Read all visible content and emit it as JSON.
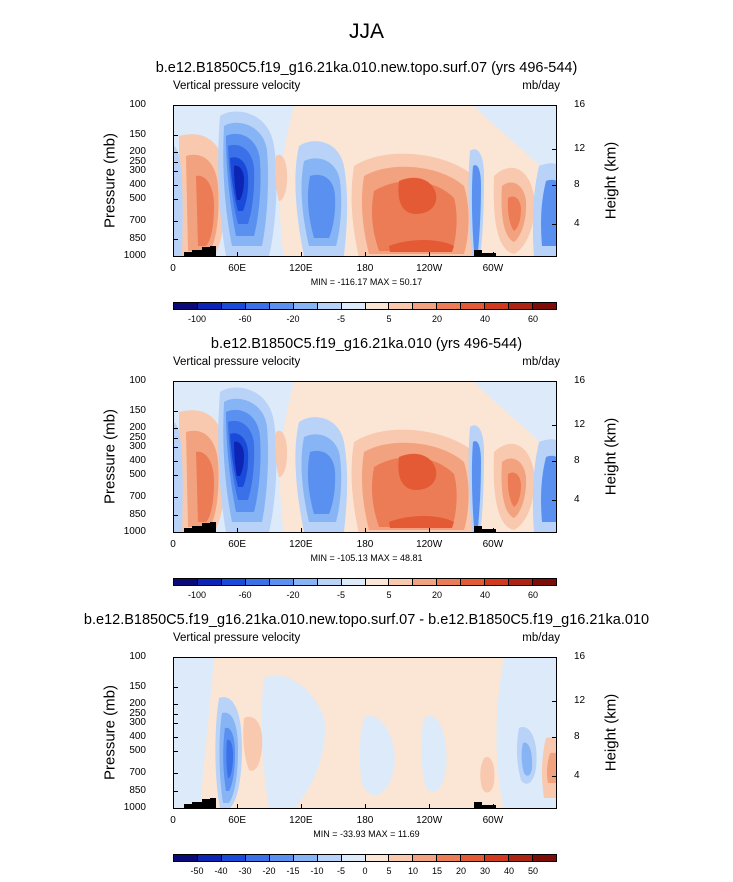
{
  "title": "JJA",
  "colors": {
    "diverging": [
      "#0a0a78",
      "#0d25b4",
      "#1a4bd8",
      "#3a70e8",
      "#5a90f0",
      "#86b4f4",
      "#b8d3f7",
      "#dceaf9",
      "#fbe6d6",
      "#f8c9ae",
      "#f3a27f",
      "#ec7c55",
      "#e35a35",
      "#d13a1c",
      "#ad2412",
      "#7e0c08"
    ]
  },
  "chart_data": [
    {
      "type": "heatmap",
      "title": "b.e12.B1850C5.f19_g16.21ka.010.new.topo.surf.07 (yrs 496-544)",
      "subtitle_left": "Vertical pressure velocity",
      "subtitle_right": "mb/day",
      "ylabel": "Pressure (mb)",
      "ylabel_right": "Height (km)",
      "x_ticks": [
        "0",
        "60E",
        "120E",
        "180",
        "120W",
        "60W"
      ],
      "y_ticks": [
        "100",
        "150",
        "200",
        "250",
        "300",
        "400",
        "500",
        "700",
        "850",
        "1000"
      ],
      "y_ticks_right": [
        "16",
        "12",
        "8",
        "4"
      ],
      "minmax": "MIN = -116.17  MAX =  50.17",
      "colorbar_labels": [
        "-100",
        "-60",
        "-20",
        "-5",
        "5",
        "20",
        "40",
        "60"
      ],
      "variant": "full"
    },
    {
      "type": "heatmap",
      "title": "b.e12.B1850C5.f19_g16.21ka.010 (yrs 496-544)",
      "subtitle_left": "Vertical pressure velocity",
      "subtitle_right": "mb/day",
      "ylabel": "Pressure (mb)",
      "ylabel_right": "Height (km)",
      "x_ticks": [
        "0",
        "60E",
        "120E",
        "180",
        "120W",
        "60W"
      ],
      "y_ticks": [
        "100",
        "150",
        "200",
        "250",
        "300",
        "400",
        "500",
        "700",
        "850",
        "1000"
      ],
      "y_ticks_right": [
        "16",
        "12",
        "8",
        "4"
      ],
      "minmax": "MIN = -105.13  MAX =  48.81",
      "colorbar_labels": [
        "-100",
        "-60",
        "-20",
        "-5",
        "5",
        "20",
        "40",
        "60"
      ],
      "variant": "full"
    },
    {
      "type": "heatmap",
      "title": "b.e12.B1850C5.f19_g16.21ka.010.new.topo.surf.07 - b.e12.B1850C5.f19_g16.21ka.010",
      "subtitle_left": "Vertical pressure velocity",
      "subtitle_right": "mb/day",
      "ylabel": "Pressure (mb)",
      "ylabel_right": "Height (km)",
      "x_ticks": [
        "0",
        "60E",
        "120E",
        "180",
        "120W",
        "60W"
      ],
      "y_ticks": [
        "100",
        "150",
        "200",
        "250",
        "300",
        "400",
        "500",
        "700",
        "850",
        "1000"
      ],
      "y_ticks_right": [
        "16",
        "12",
        "8",
        "4"
      ],
      "minmax": "MIN = -33.93  MAX =  11.69",
      "colorbar_labels": [
        "-50",
        "-40",
        "-30",
        "-20",
        "-15",
        "-10",
        "-5",
        "0",
        "5",
        "10",
        "15",
        "20",
        "30",
        "40",
        "50"
      ],
      "variant": "diff"
    }
  ]
}
